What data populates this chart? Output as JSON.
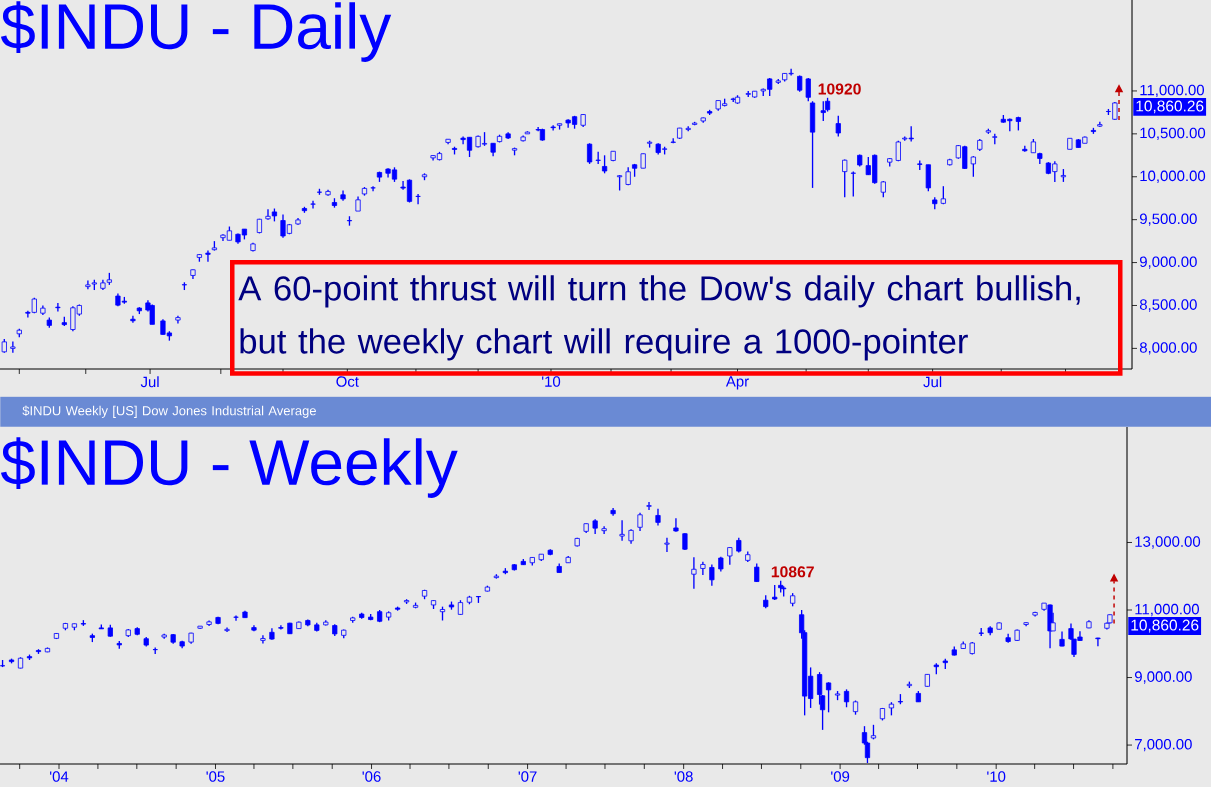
{
  "chart_data": [
    {
      "type": "candlestick",
      "title": "$INDU - Daily",
      "color": "#0000ff",
      "annotations": [
        "A 60-point thrust will turn the Dow's daily chart bullish, but the weekly chart will require a 1000-pointer",
        {
          "text": "10920",
          "x": "2010-05-13",
          "y": 10920
        },
        "10,860.26"
      ],
      "xlim": [
        "2009-04-22",
        "2010-10-02"
      ],
      "ylim": [
        7760,
        12060
      ],
      "xticks": [
        {
          "value": "2009-05-01",
          "label": null
        },
        {
          "value": "2009-06-01",
          "label": null
        },
        {
          "value": "2009-07-01",
          "label": "Jul"
        },
        {
          "value": "2009-08-03",
          "label": null
        },
        {
          "value": "2009-09-01",
          "label": null
        },
        {
          "value": "2009-10-01",
          "label": "Oct"
        },
        {
          "value": "2009-11-02",
          "label": null
        },
        {
          "value": "2009-12-01",
          "label": null
        },
        {
          "value": "2010-01-04",
          "label": "'10"
        },
        {
          "value": "2010-02-01",
          "label": null
        },
        {
          "value": "2010-03-01",
          "label": null
        },
        {
          "value": "2010-04-01",
          "label": "Apr"
        },
        {
          "value": "2010-05-03",
          "label": null
        },
        {
          "value": "2010-06-01",
          "label": null
        },
        {
          "value": "2010-07-01",
          "label": "Jul"
        },
        {
          "value": "2010-08-02",
          "label": null
        },
        {
          "value": "2010-09-01",
          "label": null
        }
      ],
      "yticks": [
        {
          "value": 8000,
          "label": "8,000.00"
        },
        {
          "value": 8500,
          "label": "8,500.00"
        },
        {
          "value": 9000,
          "label": "9,000.00"
        },
        {
          "value": 9500,
          "label": "9,500.00"
        },
        {
          "value": 10000,
          "label": "10,000.00"
        },
        {
          "value": 10500,
          "label": "10,500.00"
        },
        {
          "value": 11000,
          "label": "11,000.00"
        }
      ],
      "x": [
        "2009-04-24",
        "2009-04-28",
        "2009-05-01",
        "2009-05-05",
        "2009-05-08",
        "2009-05-12",
        "2009-05-15",
        "2009-05-19",
        "2009-05-22",
        "2009-05-26",
        "2009-05-29",
        "2009-06-02",
        "2009-06-05",
        "2009-06-09",
        "2009-06-12",
        "2009-06-16",
        "2009-06-19",
        "2009-06-23",
        "2009-06-26",
        "2009-06-30",
        "2009-07-02",
        "2009-07-07",
        "2009-07-10",
        "2009-07-14",
        "2009-07-17",
        "2009-07-21",
        "2009-07-24",
        "2009-07-28",
        "2009-07-31",
        "2009-08-04",
        "2009-08-07",
        "2009-08-11",
        "2009-08-14",
        "2009-08-18",
        "2009-08-21",
        "2009-08-25",
        "2009-08-28",
        "2009-09-01",
        "2009-09-04",
        "2009-09-08",
        "2009-09-11",
        "2009-09-15",
        "2009-09-18",
        "2009-09-22",
        "2009-09-25",
        "2009-09-29",
        "2009-10-02",
        "2009-10-06",
        "2009-10-09",
        "2009-10-13",
        "2009-10-16",
        "2009-10-20",
        "2009-10-23",
        "2009-10-27",
        "2009-10-30",
        "2009-11-03",
        "2009-11-06",
        "2009-11-10",
        "2009-11-13",
        "2009-11-17",
        "2009-11-20",
        "2009-11-24",
        "2009-11-27",
        "2009-12-01",
        "2009-12-04",
        "2009-12-08",
        "2009-12-11",
        "2009-12-15",
        "2009-12-18",
        "2009-12-22",
        "2009-12-24",
        "2009-12-29",
        "2009-12-31",
        "2010-01-05",
        "2010-01-08",
        "2010-01-12",
        "2010-01-15",
        "2010-01-19",
        "2010-01-22",
        "2010-01-26",
        "2010-01-29",
        "2010-02-02",
        "2010-02-05",
        "2010-02-09",
        "2010-02-12",
        "2010-02-16",
        "2010-02-19",
        "2010-02-23",
        "2010-02-26",
        "2010-03-02",
        "2010-03-05",
        "2010-03-09",
        "2010-03-12",
        "2010-03-16",
        "2010-03-19",
        "2010-03-23",
        "2010-03-26",
        "2010-03-30",
        "2010-04-01",
        "2010-04-06",
        "2010-04-09",
        "2010-04-13",
        "2010-04-16",
        "2010-04-20",
        "2010-04-23",
        "2010-04-26",
        "2010-04-30",
        "2010-05-04",
        "2010-05-06",
        "2010-05-11",
        "2010-05-13",
        "2010-05-18",
        "2010-05-21",
        "2010-05-25",
        "2010-05-28",
        "2010-06-01",
        "2010-06-04",
        "2010-06-08",
        "2010-06-11",
        "2010-06-15",
        "2010-06-18",
        "2010-06-21",
        "2010-06-25",
        "2010-06-29",
        "2010-07-02",
        "2010-07-06",
        "2010-07-09",
        "2010-07-13",
        "2010-07-16",
        "2010-07-20",
        "2010-07-23",
        "2010-07-27",
        "2010-07-30",
        "2010-08-03",
        "2010-08-06",
        "2010-08-10",
        "2010-08-13",
        "2010-08-17",
        "2010-08-20",
        "2010-08-24",
        "2010-08-27",
        "2010-08-31",
        "2010-09-03",
        "2010-09-07",
        "2010-09-10",
        "2010-09-14",
        "2010-09-17",
        "2010-09-21",
        "2010-09-24"
      ],
      "ohlc": [
        [
          7960,
          8110,
          7950,
          8076
        ],
        [
          8000,
          8080,
          7950,
          8017
        ],
        [
          8170,
          8230,
          8130,
          8212
        ],
        [
          8420,
          8440,
          8360,
          8410
        ],
        [
          8420,
          8590,
          8410,
          8575
        ],
        [
          8410,
          8500,
          8390,
          8469
        ],
        [
          8330,
          8360,
          8240,
          8268
        ],
        [
          8480,
          8530,
          8430,
          8474
        ],
        [
          8300,
          8370,
          8260,
          8277
        ],
        [
          8220,
          8490,
          8200,
          8473
        ],
        [
          8400,
          8510,
          8380,
          8500
        ],
        [
          8720,
          8790,
          8690,
          8740
        ],
        [
          8750,
          8800,
          8680,
          8764
        ],
        [
          8700,
          8800,
          8680,
          8763
        ],
        [
          8770,
          8880,
          8740,
          8799
        ],
        [
          8610,
          8640,
          8490,
          8504
        ],
        [
          8550,
          8600,
          8520,
          8539
        ],
        [
          8340,
          8380,
          8300,
          8322
        ],
        [
          8470,
          8480,
          8400,
          8438
        ],
        [
          8530,
          8560,
          8430,
          8447
        ],
        [
          8500,
          8510,
          8280,
          8280
        ],
        [
          8320,
          8340,
          8160,
          8163
        ],
        [
          8180,
          8200,
          8090,
          8146
        ],
        [
          8330,
          8380,
          8290,
          8359
        ],
        [
          8740,
          8770,
          8680,
          8743
        ],
        [
          8850,
          8920,
          8810,
          8916
        ],
        [
          9060,
          9100,
          9010,
          9093
        ],
        [
          9110,
          9140,
          9010,
          9096
        ],
        [
          9150,
          9250,
          9140,
          9171
        ],
        [
          9290,
          9330,
          9250,
          9320
        ],
        [
          9260,
          9420,
          9260,
          9370
        ],
        [
          9330,
          9340,
          9220,
          9241
        ],
        [
          9390,
          9390,
          9270,
          9321
        ],
        [
          9140,
          9230,
          9130,
          9217
        ],
        [
          9350,
          9510,
          9340,
          9505
        ],
        [
          9510,
          9620,
          9500,
          9539
        ],
        [
          9590,
          9630,
          9480,
          9544
        ],
        [
          9490,
          9560,
          9290,
          9310
        ],
        [
          9340,
          9450,
          9330,
          9441
        ],
        [
          9450,
          9520,
          9440,
          9497
        ],
        [
          9630,
          9650,
          9580,
          9605
        ],
        [
          9680,
          9720,
          9630,
          9683
        ],
        [
          9820,
          9860,
          9790,
          9820
        ],
        [
          9790,
          9850,
          9780,
          9829
        ],
        [
          9700,
          9750,
          9640,
          9665
        ],
        [
          9790,
          9840,
          9720,
          9742
        ],
        [
          9490,
          9540,
          9430,
          9487
        ],
        [
          9600,
          9770,
          9600,
          9731
        ],
        [
          9800,
          9880,
          9780,
          9864
        ],
        [
          9870,
          9890,
          9830,
          9871
        ],
        [
          10050,
          10060,
          9940,
          9996
        ],
        [
          10090,
          10100,
          9990,
          10041
        ],
        [
          10080,
          10110,
          9940,
          9972
        ],
        [
          9880,
          9950,
          9850,
          9868
        ],
        [
          9960,
          9970,
          9700,
          9713
        ],
        [
          9770,
          9800,
          9680,
          9772
        ],
        [
          10000,
          10040,
          9960,
          10023
        ],
        [
          10220,
          10250,
          10190,
          10247
        ],
        [
          10200,
          10290,
          10190,
          10270
        ],
        [
          10400,
          10440,
          10380,
          10437
        ],
        [
          10330,
          10350,
          10260,
          10318
        ],
        [
          10450,
          10470,
          10380,
          10433
        ],
        [
          10460,
          10460,
          10230,
          10309
        ],
        [
          10350,
          10480,
          10340,
          10471
        ],
        [
          10380,
          10520,
          10360,
          10388
        ],
        [
          10390,
          10390,
          10240,
          10286
        ],
        [
          10410,
          10490,
          10400,
          10471
        ],
        [
          10500,
          10520,
          10440,
          10452
        ],
        [
          10310,
          10340,
          10250,
          10328
        ],
        [
          10420,
          10480,
          10410,
          10464
        ],
        [
          10500,
          10530,
          10500,
          10520
        ],
        [
          10550,
          10580,
          10530,
          10545
        ],
        [
          10550,
          10560,
          10420,
          10428
        ],
        [
          10580,
          10600,
          10540,
          10572
        ],
        [
          10600,
          10620,
          10550,
          10618
        ],
        [
          10660,
          10670,
          10570,
          10627
        ],
        [
          10700,
          10710,
          10560,
          10610
        ],
        [
          10600,
          10730,
          10580,
          10725
        ],
        [
          10380,
          10390,
          10150,
          10172
        ],
        [
          10190,
          10290,
          10150,
          10194
        ],
        [
          10120,
          10250,
          10040,
          10067
        ],
        [
          10190,
          10300,
          10180,
          10297
        ],
        [
          10000,
          10020,
          9840,
          10012
        ],
        [
          9910,
          10110,
          9900,
          10058
        ],
        [
          10140,
          10150,
          10000,
          10099
        ],
        [
          10100,
          10270,
          10100,
          10268
        ],
        [
          10390,
          10420,
          10340,
          10402
        ],
        [
          10380,
          10390,
          10260,
          10282
        ],
        [
          10320,
          10350,
          10260,
          10325
        ],
        [
          10400,
          10450,
          10390,
          10405
        ],
        [
          10450,
          10570,
          10440,
          10567
        ],
        [
          10550,
          10590,
          10530,
          10564
        ],
        [
          10610,
          10640,
          10600,
          10625
        ],
        [
          10650,
          10690,
          10630,
          10686
        ],
        [
          10760,
          10780,
          10720,
          10742
        ],
        [
          10790,
          10890,
          10770,
          10888
        ],
        [
          10830,
          10910,
          10820,
          10851
        ],
        [
          10900,
          10920,
          10870,
          10907
        ],
        [
          10860,
          10950,
          10850,
          10927
        ],
        [
          10960,
          11000,
          10930,
          10970
        ],
        [
          10930,
          11000,
          10920,
          10997
        ],
        [
          11000,
          11030,
          10940,
          11019
        ],
        [
          11140,
          11150,
          10940,
          11019
        ],
        [
          11100,
          11140,
          11080,
          11117
        ],
        [
          11130,
          11210,
          11110,
          11204
        ],
        [
          11200,
          11258,
          11180,
          11205
        ],
        [
          11170,
          11180,
          10990,
          11009
        ],
        [
          11140,
          11150,
          10880,
          10926
        ],
        [
          10860,
          10880,
          9870,
          10520
        ],
        [
          10770,
          10880,
          10650,
          10748
        ],
        [
          10880,
          10920,
          10760,
          10782
        ],
        [
          10620,
          10710,
          10470,
          10510
        ],
        [
          10060,
          10200,
          9760,
          10193
        ],
        [
          10040,
          10060,
          9770,
          10043
        ],
        [
          10250,
          10260,
          10120,
          10137
        ],
        [
          10130,
          10230,
          10020,
          10024
        ],
        [
          10250,
          10260,
          9920,
          9931
        ],
        [
          9820,
          9950,
          9760,
          9940
        ],
        [
          10170,
          10220,
          10120,
          10211
        ],
        [
          10190,
          10420,
          10180,
          10405
        ],
        [
          10440,
          10470,
          10420,
          10450
        ],
        [
          10450,
          10590,
          10410,
          10442
        ],
        [
          10150,
          10190,
          10080,
          10144
        ],
        [
          10140,
          10140,
          9830,
          9870
        ],
        [
          9730,
          9760,
          9620,
          9686
        ],
        [
          9690,
          9890,
          9680,
          9743
        ],
        [
          10140,
          10210,
          10130,
          10198
        ],
        [
          10220,
          10370,
          10210,
          10363
        ],
        [
          10350,
          10360,
          10090,
          10097
        ],
        [
          10150,
          10240,
          10000,
          10230
        ],
        [
          10320,
          10440,
          10300,
          10424
        ],
        [
          10520,
          10560,
          10500,
          10537
        ],
        [
          10460,
          10500,
          10380,
          10466
        ],
        [
          10670,
          10720,
          10630,
          10636
        ],
        [
          10670,
          10680,
          10530,
          10653
        ],
        [
          10690,
          10700,
          10540,
          10644
        ],
        [
          10320,
          10360,
          10290,
          10303
        ],
        [
          10280,
          10440,
          10280,
          10406
        ],
        [
          10270,
          10280,
          10150,
          10213
        ],
        [
          10160,
          10170,
          10030,
          10040
        ],
        [
          10060,
          10180,
          9940,
          10150
        ],
        [
          10000,
          10090,
          9940,
          10015
        ],
        [
          10320,
          10450,
          10320,
          10448
        ],
        [
          10430,
          10440,
          10340,
          10341
        ],
        [
          10390,
          10470,
          10390,
          10462
        ],
        [
          10540,
          10570,
          10500,
          10527
        ],
        [
          10590,
          10640,
          10580,
          10608
        ],
        [
          10760,
          10790,
          10720,
          10761
        ],
        [
          10670,
          10870,
          10660,
          10860.26
        ]
      ]
    },
    {
      "type": "candlestick",
      "title": "$INDU - Weekly",
      "subtitle": "$INDU Weekly [US] Dow Jones Industrial Average",
      "color": "#0000ff",
      "annotations": [
        {
          "text": "10867",
          "x": "2008-08-15",
          "y": 11870
        },
        "10,860.26"
      ],
      "xlim": [
        "2003-08-16",
        "2010-11-03"
      ],
      "ylim": [
        6440,
        16420
      ],
      "xticks": [
        {
          "value": "2003-10-01",
          "label": null
        },
        {
          "value": "2004-01-01",
          "label": "'04"
        },
        {
          "value": "2004-04-01",
          "label": null
        },
        {
          "value": "2004-07-01",
          "label": null
        },
        {
          "value": "2004-10-01",
          "label": null
        },
        {
          "value": "2005-01-01",
          "label": "'05"
        },
        {
          "value": "2005-04-01",
          "label": null
        },
        {
          "value": "2005-07-01",
          "label": null
        },
        {
          "value": "2005-10-01",
          "label": null
        },
        {
          "value": "2006-01-01",
          "label": "'06"
        },
        {
          "value": "2006-04-01",
          "label": null
        },
        {
          "value": "2006-07-01",
          "label": null
        },
        {
          "value": "2006-10-01",
          "label": null
        },
        {
          "value": "2007-01-01",
          "label": "'07"
        },
        {
          "value": "2007-04-01",
          "label": null
        },
        {
          "value": "2007-07-01",
          "label": null
        },
        {
          "value": "2007-10-01",
          "label": null
        },
        {
          "value": "2008-01-01",
          "label": "'08"
        },
        {
          "value": "2008-04-01",
          "label": null
        },
        {
          "value": "2008-07-01",
          "label": null
        },
        {
          "value": "2008-10-01",
          "label": null
        },
        {
          "value": "2009-01-01",
          "label": "'09"
        },
        {
          "value": "2009-04-01",
          "label": null
        },
        {
          "value": "2009-07-01",
          "label": null
        },
        {
          "value": "2009-10-01",
          "label": null
        },
        {
          "value": "2010-01-01",
          "label": "'10"
        },
        {
          "value": "2010-04-01",
          "label": null
        },
        {
          "value": "2010-07-01",
          "label": null
        },
        {
          "value": "2010-10-01",
          "label": null
        }
      ],
      "yticks": [
        {
          "value": 7000,
          "label": "7,000.00"
        },
        {
          "value": 9000,
          "label": "9,000.00"
        },
        {
          "value": 11000,
          "label": "11,000.00"
        },
        {
          "value": 13000,
          "label": "13,000.00"
        }
      ],
      "x": [
        "2003-08-22",
        "2003-09-12",
        "2003-10-03",
        "2003-10-24",
        "2003-11-14",
        "2003-12-05",
        "2003-12-26",
        "2004-01-16",
        "2004-02-06",
        "2004-02-27",
        "2004-03-19",
        "2004-04-09",
        "2004-04-30",
        "2004-05-21",
        "2004-06-11",
        "2004-07-02",
        "2004-07-23",
        "2004-08-13",
        "2004-09-03",
        "2004-09-24",
        "2004-10-15",
        "2004-11-05",
        "2004-11-26",
        "2004-12-17",
        "2005-01-07",
        "2005-01-28",
        "2005-02-18",
        "2005-03-11",
        "2005-04-01",
        "2005-04-22",
        "2005-05-13",
        "2005-06-03",
        "2005-06-24",
        "2005-07-15",
        "2005-08-05",
        "2005-08-26",
        "2005-09-16",
        "2005-10-07",
        "2005-10-28",
        "2005-11-18",
        "2005-12-09",
        "2005-12-30",
        "2006-01-20",
        "2006-02-10",
        "2006-03-03",
        "2006-03-24",
        "2006-04-14",
        "2006-05-05",
        "2006-05-26",
        "2006-06-16",
        "2006-07-07",
        "2006-07-28",
        "2006-08-18",
        "2006-09-08",
        "2006-09-29",
        "2006-10-20",
        "2006-11-10",
        "2006-12-01",
        "2006-12-22",
        "2007-01-12",
        "2007-02-02",
        "2007-02-23",
        "2007-03-16",
        "2007-04-06",
        "2007-04-27",
        "2007-05-18",
        "2007-06-08",
        "2007-06-29",
        "2007-07-20",
        "2007-08-10",
        "2007-08-31",
        "2007-09-21",
        "2007-10-12",
        "2007-11-02",
        "2007-11-23",
        "2007-12-14",
        "2008-01-04",
        "2008-01-25",
        "2008-02-15",
        "2008-03-07",
        "2008-03-28",
        "2008-04-18",
        "2008-05-09",
        "2008-05-30",
        "2008-06-20",
        "2008-07-11",
        "2008-08-01",
        "2008-08-15",
        "2008-08-22",
        "2008-09-12",
        "2008-10-03",
        "2008-10-10",
        "2008-10-24",
        "2008-11-14",
        "2008-11-21",
        "2008-12-05",
        "2008-12-26",
        "2009-01-16",
        "2009-02-06",
        "2009-02-27",
        "2009-03-06",
        "2009-03-20",
        "2009-04-10",
        "2009-05-01",
        "2009-05-22",
        "2009-06-12",
        "2009-07-03",
        "2009-07-24",
        "2009-08-14",
        "2009-09-04",
        "2009-09-25",
        "2009-10-16",
        "2009-11-06",
        "2009-11-27",
        "2009-12-18",
        "2010-01-08",
        "2010-01-29",
        "2010-02-19",
        "2010-03-12",
        "2010-04-02",
        "2010-04-23",
        "2010-05-07",
        "2010-05-14",
        "2010-06-04",
        "2010-06-25",
        "2010-07-02",
        "2010-07-16",
        "2010-08-06",
        "2010-08-27",
        "2010-09-17",
        "2010-09-24"
      ],
      "ohlc": [
        [
          9350,
          9520,
          9310,
          9348
        ],
        [
          9520,
          9560,
          9420,
          9471
        ],
        [
          9280,
          9600,
          9270,
          9572
        ],
        [
          9620,
          9680,
          9520,
          9582
        ],
        [
          9800,
          9840,
          9700,
          9768
        ],
        [
          9760,
          9890,
          9750,
          9863
        ],
        [
          10160,
          10320,
          10140,
          10305
        ],
        [
          10460,
          10620,
          10400,
          10600
        ],
        [
          10490,
          10600,
          10400,
          10593
        ],
        [
          10600,
          10700,
          10530,
          10583
        ],
        [
          10240,
          10300,
          10050,
          10186
        ],
        [
          10470,
          10570,
          10440,
          10442
        ],
        [
          10470,
          10560,
          10210,
          10225
        ],
        [
          10010,
          10080,
          9850,
          9966
        ],
        [
          10240,
          10440,
          10200,
          10410
        ],
        [
          10450,
          10490,
          10250,
          10282
        ],
        [
          10150,
          10200,
          9920,
          9962
        ],
        [
          9830,
          9890,
          9700,
          9825
        ],
        [
          10200,
          10300,
          10150,
          10260
        ],
        [
          10270,
          10290,
          10000,
          10047
        ],
        [
          10060,
          10090,
          9870,
          9933
        ],
        [
          10050,
          10330,
          10000,
          10315
        ],
        [
          10460,
          10530,
          10440,
          10522
        ],
        [
          10570,
          10690,
          10530,
          10649
        ],
        [
          10780,
          10800,
          10580,
          10603
        ],
        [
          10390,
          10480,
          10350,
          10427
        ],
        [
          10790,
          10840,
          10680,
          10785
        ],
        [
          10940,
          10980,
          10770,
          10774
        ],
        [
          10480,
          10550,
          10370,
          10404
        ],
        [
          10100,
          10250,
          10010,
          10157
        ],
        [
          10340,
          10460,
          10120,
          10140
        ],
        [
          10480,
          10550,
          10420,
          10461
        ],
        [
          10610,
          10620,
          10290,
          10297
        ],
        [
          10450,
          10660,
          10440,
          10640
        ],
        [
          10690,
          10720,
          10520,
          10558
        ],
        [
          10560,
          10620,
          10360,
          10397
        ],
        [
          10560,
          10700,
          10540,
          10641
        ],
        [
          10540,
          10580,
          10230,
          10292
        ],
        [
          10250,
          10420,
          10160,
          10403
        ],
        [
          10690,
          10800,
          10620,
          10766
        ],
        [
          10880,
          10920,
          10740,
          10778
        ],
        [
          10790,
          10880,
          10700,
          10718
        ],
        [
          10950,
          11000,
          10640,
          10667
        ],
        [
          10790,
          10960,
          10690,
          10919
        ],
        [
          11060,
          11100,
          10980,
          11022
        ],
        [
          11240,
          11320,
          11180,
          11280
        ],
        [
          11080,
          11220,
          11050,
          11137
        ],
        [
          11410,
          11600,
          11320,
          11578
        ],
        [
          11150,
          11290,
          11030,
          11278
        ],
        [
          10950,
          11100,
          10690,
          11015
        ],
        [
          11150,
          11250,
          11010,
          11090
        ],
        [
          10870,
          11290,
          10860,
          11220
        ],
        [
          11230,
          11420,
          11170,
          11381
        ],
        [
          11400,
          11410,
          11210,
          11393
        ],
        [
          11560,
          11720,
          11550,
          11679
        ],
        [
          11960,
          12060,
          11930,
          12002
        ],
        [
          12150,
          12240,
          12060,
          12106
        ],
        [
          12340,
          12360,
          12170,
          12194
        ],
        [
          12440,
          12510,
          12330,
          12343
        ],
        [
          12400,
          12560,
          12320,
          12556
        ],
        [
          12490,
          12660,
          12450,
          12653
        ],
        [
          12770,
          12800,
          12620,
          12648
        ],
        [
          12290,
          12380,
          12100,
          12110
        ],
        [
          12400,
          12600,
          12390,
          12560
        ],
        [
          12900,
          13140,
          12880,
          13120
        ],
        [
          13330,
          13560,
          13280,
          13556
        ],
        [
          13640,
          13690,
          13250,
          13424
        ],
        [
          13350,
          13480,
          13250,
          13409
        ],
        [
          13950,
          14020,
          13790,
          13851
        ],
        [
          13190,
          13660,
          13050,
          13240
        ],
        [
          13050,
          13390,
          12960,
          13358
        ],
        [
          13450,
          13880,
          13340,
          13820
        ],
        [
          14070,
          14200,
          13960,
          14093
        ],
        [
          13800,
          14000,
          13500,
          13595
        ],
        [
          12950,
          13140,
          12720,
          12981
        ],
        [
          13430,
          13720,
          13320,
          13340
        ],
        [
          13260,
          13270,
          12780,
          12800
        ],
        [
          12060,
          12560,
          11630,
          12207
        ],
        [
          12230,
          12430,
          12040,
          12349
        ],
        [
          12260,
          12350,
          11720,
          11894
        ],
        [
          12540,
          12580,
          12140,
          12216
        ],
        [
          12600,
          12860,
          12340,
          12849
        ],
        [
          13060,
          13140,
          12700,
          12745
        ],
        [
          12470,
          12730,
          12420,
          12638
        ],
        [
          12270,
          12380,
          11830,
          11843
        ],
        [
          11290,
          11440,
          11050,
          11100
        ],
        [
          11380,
          11740,
          11300,
          11326
        ],
        [
          11730,
          11870,
          11520,
          11659
        ],
        [
          11650,
          11700,
          11400,
          11628
        ],
        [
          11200,
          11500,
          11110,
          11421
        ],
        [
          10860,
          11000,
          10150,
          10325
        ],
        [
          10330,
          10400,
          7880,
          8451
        ],
        [
          9040,
          9300,
          8100,
          8378
        ],
        [
          9090,
          9160,
          8200,
          8497
        ],
        [
          8460,
          8480,
          7450,
          8046
        ],
        [
          8840,
          8860,
          7970,
          8635
        ],
        [
          8480,
          8600,
          8330,
          8515
        ],
        [
          8590,
          8650,
          8120,
          8281
        ],
        [
          7990,
          8320,
          7900,
          8280
        ],
        [
          7370,
          7560,
          7010,
          7062
        ],
        [
          7060,
          7100,
          6470,
          6627
        ],
        [
          7210,
          7600,
          7170,
          7278
        ],
        [
          7780,
          8100,
          7730,
          8083
        ],
        [
          8100,
          8270,
          7880,
          8212
        ],
        [
          8290,
          8510,
          8210,
          8277
        ],
        [
          8760,
          8880,
          8690,
          8799
        ],
        [
          8530,
          8600,
          8280,
          8280
        ],
        [
          8740,
          9100,
          8730,
          9093
        ],
        [
          9370,
          9420,
          9100,
          9321
        ],
        [
          9490,
          9560,
          9250,
          9441
        ],
        [
          9820,
          9920,
          9650,
          9665
        ],
        [
          9860,
          10070,
          9850,
          9996
        ],
        [
          9710,
          10050,
          9680,
          10023
        ],
        [
          10320,
          10470,
          10230,
          10309
        ],
        [
          10470,
          10520,
          10250,
          10328
        ],
        [
          10430,
          10630,
          10420,
          10618
        ],
        [
          10180,
          10300,
          10030,
          10067
        ],
        [
          10100,
          10420,
          10080,
          10402
        ],
        [
          10570,
          10640,
          10520,
          10625
        ],
        [
          10850,
          10950,
          10810,
          10927
        ],
        [
          11020,
          11210,
          10980,
          11204
        ],
        [
          11150,
          11160,
          9870,
          10380
        ],
        [
          10380,
          10920,
          10380,
          10620
        ],
        [
          10130,
          10360,
          9930,
          9931
        ],
        [
          10450,
          10600,
          10110,
          10144
        ],
        [
          10140,
          10140,
          9610,
          9686
        ],
        [
          10200,
          10370,
          10090,
          10097
        ],
        [
          10470,
          10700,
          10460,
          10653
        ],
        [
          10170,
          10180,
          9930,
          10150
        ],
        [
          10460,
          10630,
          10420,
          10608
        ],
        [
          10620,
          10870,
          10600,
          10860.26
        ]
      ]
    }
  ]
}
